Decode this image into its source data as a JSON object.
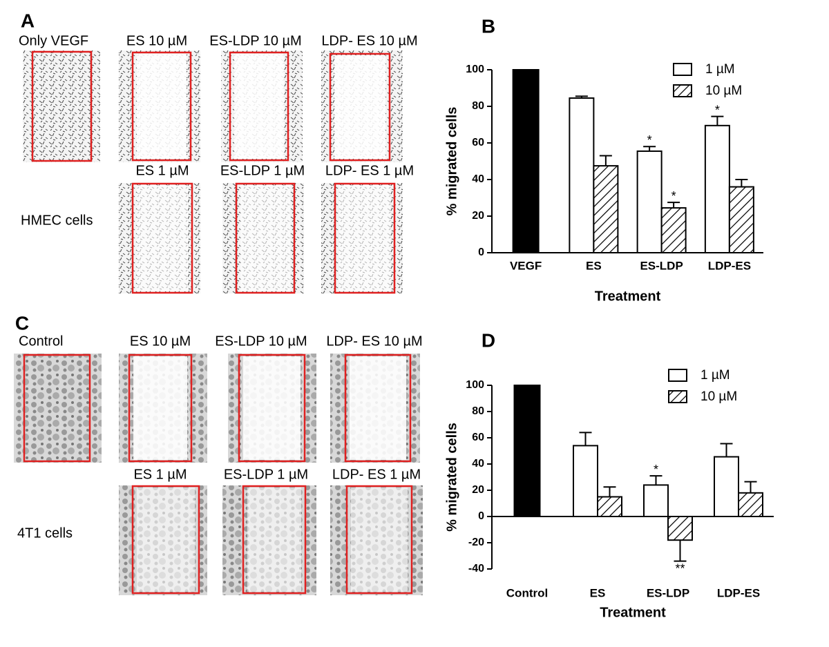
{
  "image_panels": [
    {
      "label": "A",
      "cell_line": "HMEC cells",
      "captions": [
        "Only VEGF",
        "ES 10 µM",
        "ES-LDP 10 µM",
        "LDP- ES 10 µM",
        "ES 1 µM",
        "ES-LDP 1 µM",
        "LDP- ES 1 µM"
      ]
    },
    {
      "label": "C",
      "cell_line": "4T1 cells",
      "captions": [
        "Control",
        "ES 10 µM",
        "ES-LDP 10 µM",
        "LDP- ES 10 µM",
        "ES 1 µM",
        "ES-LDP 1 µM",
        "LDP- ES 1 µM"
      ]
    }
  ],
  "chart_data": [
    {
      "type": "bar",
      "label": "B",
      "xlabel": "Treatment",
      "ylabel": "% migrated cells",
      "categories": [
        "VEGF",
        "ES",
        "ES-LDP",
        "LDP-ES"
      ],
      "control": {
        "values": [
          100,
          null,
          null,
          null
        ],
        "color": "#000000"
      },
      "series": [
        {
          "name": "1 µM",
          "color": "#ffffff",
          "values": [
            null,
            84.5,
            55.5,
            69.5
          ],
          "errors": [
            null,
            1,
            2.5,
            5
          ],
          "significance": [
            null,
            null,
            "*",
            "*"
          ]
        },
        {
          "name": "10 µM",
          "color": "#ffffff",
          "pattern": "hatch",
          "values": [
            null,
            47.5,
            24.5,
            36
          ],
          "errors": [
            null,
            5.5,
            3,
            4
          ],
          "significance": [
            null,
            null,
            "*",
            null
          ]
        }
      ],
      "ylim": [
        0,
        100
      ],
      "yticks": [
        0,
        20,
        40,
        60,
        80,
        100
      ],
      "legend": "top-right"
    },
    {
      "type": "bar",
      "label": "D",
      "xlabel": "Treatment",
      "ylabel": "% migrated cells",
      "categories": [
        "Control",
        "ES",
        "ES-LDP",
        "LDP-ES"
      ],
      "control": {
        "values": [
          100,
          null,
          null,
          null
        ],
        "color": "#000000"
      },
      "series": [
        {
          "name": "1 µM",
          "color": "#ffffff",
          "values": [
            null,
            54,
            24,
            45.5
          ],
          "errors": [
            null,
            10,
            7,
            10
          ],
          "significance": [
            null,
            null,
            "*",
            null
          ]
        },
        {
          "name": "10 µM",
          "color": "#ffffff",
          "pattern": "hatch",
          "values": [
            null,
            15,
            -18,
            18
          ],
          "errors": [
            null,
            7.5,
            16,
            8.5
          ],
          "significance": [
            null,
            null,
            "**",
            null
          ]
        }
      ],
      "ylim": [
        -40,
        100
      ],
      "yticks": [
        -40,
        -20,
        0,
        20,
        40,
        60,
        80,
        100
      ],
      "legend": "top-right"
    }
  ]
}
